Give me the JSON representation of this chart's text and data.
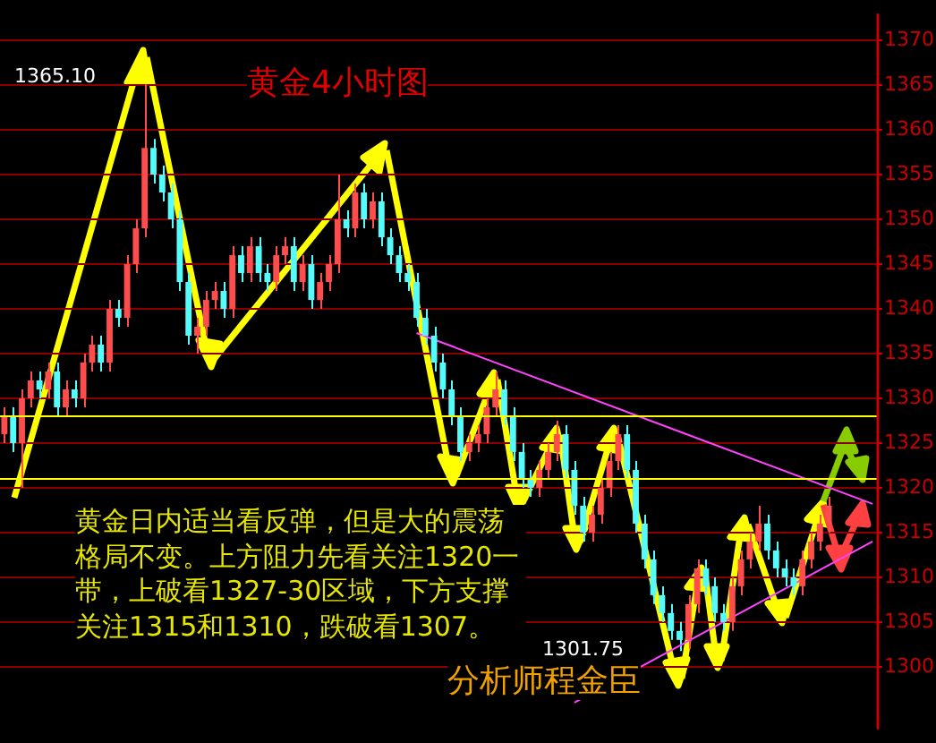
{
  "chart_data": {
    "type": "candlestick",
    "title": "黄金4小时图",
    "categories": [
      null,
      null,
      null,
      null,
      null,
      null,
      null,
      null,
      null,
      null,
      null,
      null,
      null,
      null,
      null,
      null,
      null,
      null,
      null,
      null,
      null,
      null,
      null,
      null,
      null,
      null,
      null,
      null,
      null,
      null,
      null,
      null,
      null,
      null,
      null,
      null,
      null,
      null,
      null,
      null,
      null,
      null,
      null,
      null,
      null,
      null,
      null,
      null,
      null,
      null,
      null,
      null,
      null,
      null,
      null,
      null,
      null,
      null,
      null,
      null,
      null,
      null,
      null,
      null,
      null,
      null,
      null,
      null,
      null,
      null,
      null,
      null,
      null,
      null,
      null,
      null,
      null,
      null,
      null,
      null,
      null,
      null,
      null,
      null,
      null,
      null,
      null,
      null,
      null,
      null,
      null,
      null,
      null,
      null,
      null,
      null,
      null,
      null,
      null,
      null
    ],
    "ohlc": [
      [
        1326,
        1329,
        1325,
        1328
      ],
      [
        1328,
        1329,
        1324,
        1325
      ],
      [
        1325,
        1331,
        1320,
        1330
      ],
      [
        1330,
        1333,
        1329,
        1332
      ],
      [
        1332,
        1333,
        1330,
        1331
      ],
      [
        1331,
        1334,
        1330,
        1333
      ],
      [
        1333,
        1334,
        1328,
        1329
      ],
      [
        1329,
        1332,
        1328,
        1331
      ],
      [
        1331,
        1332,
        1329,
        1330
      ],
      [
        1330,
        1335,
        1329,
        1334
      ],
      [
        1334,
        1337,
        1333,
        1336
      ],
      [
        1336,
        1337,
        1333,
        1334
      ],
      [
        1334,
        1341,
        1333,
        1340
      ],
      [
        1340,
        1341,
        1338,
        1339
      ],
      [
        1339,
        1346,
        1338,
        1345
      ],
      [
        1345,
        1350,
        1344,
        1349
      ],
      [
        1349,
        1365.1,
        1348,
        1358
      ],
      [
        1358,
        1359,
        1354,
        1355
      ],
      [
        1355,
        1356,
        1352,
        1353
      ],
      [
        1353,
        1354,
        1349,
        1350
      ],
      [
        1350,
        1351,
        1342,
        1343
      ],
      [
        1343,
        1344,
        1336,
        1337
      ],
      [
        1337,
        1339,
        1335,
        1338
      ],
      [
        1338,
        1342,
        1337,
        1341
      ],
      [
        1341,
        1343,
        1340,
        1342
      ],
      [
        1342,
        1343,
        1339,
        1340
      ],
      [
        1340,
        1347,
        1339,
        1346
      ],
      [
        1346,
        1347,
        1343,
        1344
      ],
      [
        1344,
        1348,
        1343,
        1347
      ],
      [
        1347,
        1348,
        1343,
        1344
      ],
      [
        1344,
        1345,
        1342,
        1343
      ],
      [
        1343,
        1347,
        1342,
        1346
      ],
      [
        1346,
        1348,
        1345,
        1347
      ],
      [
        1347,
        1348,
        1342,
        1343
      ],
      [
        1343,
        1346,
        1342,
        1345
      ],
      [
        1345,
        1346,
        1340,
        1341
      ],
      [
        1341,
        1344,
        1340,
        1343
      ],
      [
        1343,
        1346,
        1342,
        1345
      ],
      [
        1345,
        1355,
        1344,
        1350
      ],
      [
        1350,
        1351,
        1348,
        1349
      ],
      [
        1349,
        1354,
        1348,
        1353
      ],
      [
        1353,
        1354,
        1349,
        1350
      ],
      [
        1350,
        1353,
        1349,
        1352
      ],
      [
        1352,
        1353,
        1347,
        1348
      ],
      [
        1348,
        1349,
        1345,
        1346
      ],
      [
        1346,
        1347,
        1343,
        1344
      ],
      [
        1344,
        1345,
        1342,
        1343
      ],
      [
        1343,
        1344,
        1338,
        1339
      ],
      [
        1339,
        1340,
        1336,
        1337
      ],
      [
        1337,
        1338,
        1333,
        1334
      ],
      [
        1334,
        1335,
        1330,
        1331
      ],
      [
        1331,
        1332,
        1327,
        1328
      ],
      [
        1328,
        1329,
        1323,
        1324
      ],
      [
        1324,
        1326,
        1323,
        1325
      ],
      [
        1325,
        1327,
        1324,
        1326
      ],
      [
        1326,
        1330,
        1325,
        1329
      ],
      [
        1329,
        1333,
        1328,
        1331
      ],
      [
        1331,
        1332,
        1327,
        1328
      ],
      [
        1328,
        1329,
        1323,
        1324
      ],
      [
        1324,
        1325,
        1320,
        1321
      ],
      [
        1321,
        1322,
        1319,
        1320
      ],
      [
        1320,
        1323,
        1319,
        1322
      ],
      [
        1322,
        1325,
        1321,
        1324
      ],
      [
        1324,
        1327.5,
        1323,
        1326
      ],
      [
        1326,
        1327,
        1321,
        1322
      ],
      [
        1322,
        1323,
        1317,
        1318
      ],
      [
        1318,
        1319,
        1314,
        1315
      ],
      [
        1315,
        1318,
        1314,
        1317
      ],
      [
        1317,
        1321,
        1316,
        1320
      ],
      [
        1320,
        1324,
        1319,
        1323
      ],
      [
        1323,
        1327,
        1322,
        1326
      ],
      [
        1326,
        1327,
        1321,
        1322
      ],
      [
        1322,
        1323,
        1315,
        1316
      ],
      [
        1316,
        1317,
        1311,
        1312
      ],
      [
        1312,
        1313,
        1307,
        1308
      ],
      [
        1308,
        1309,
        1305,
        1306
      ],
      [
        1306,
        1307,
        1303,
        1304
      ],
      [
        1304,
        1305,
        1301.75,
        1303
      ],
      [
        1303,
        1308,
        1302,
        1307
      ],
      [
        1307,
        1312,
        1306,
        1311
      ],
      [
        1311,
        1312,
        1308,
        1309
      ],
      [
        1309,
        1310,
        1305,
        1306
      ],
      [
        1306,
        1307,
        1304,
        1305
      ],
      [
        1305,
        1310,
        1304,
        1309
      ],
      [
        1309,
        1313,
        1308,
        1312
      ],
      [
        1312,
        1315,
        1311,
        1314
      ],
      [
        1314,
        1318,
        1313,
        1316
      ],
      [
        1316,
        1317,
        1312,
        1313
      ],
      [
        1313,
        1314,
        1310,
        1311
      ],
      [
        1311,
        1312,
        1309,
        1310
      ],
      [
        1310,
        1311,
        1308,
        1309
      ],
      [
        1309,
        1313,
        1308,
        1312
      ],
      [
        1312,
        1315,
        1311,
        1314
      ],
      [
        1314,
        1317,
        1313,
        1316
      ],
      [
        1316,
        1319,
        1315,
        1318
      ],
      null,
      null,
      null,
      null,
      null
    ],
    "colors": [
      "#ff4d4d",
      "#54fcfc",
      "#ff4d4d",
      "#ff4d4d",
      "#54fcfc",
      "#ff4d4d",
      "#54fcfc",
      "#ff4d4d",
      "#54fcfc",
      "#ff4d4d",
      "#ff4d4d",
      "#54fcfc",
      "#ff4d4d",
      "#54fcfc",
      "#ff4d4d",
      "#ff4d4d",
      "#ff4d4d",
      "#54fcfc",
      "#54fcfc",
      "#54fcfc",
      "#54fcfc",
      "#54fcfc",
      "#ff4d4d",
      "#ff4d4d",
      "#ff4d4d",
      "#54fcfc",
      "#ff4d4d",
      "#54fcfc",
      "#ff4d4d",
      "#54fcfc",
      "#54fcfc",
      "#ff4d4d",
      "#ff4d4d",
      "#54fcfc",
      "#ff4d4d",
      "#54fcfc",
      "#ff4d4d",
      "#ff4d4d",
      "#ff4d4d",
      "#54fcfc",
      "#ff4d4d",
      "#54fcfc",
      "#ff4d4d",
      "#54fcfc",
      "#54fcfc",
      "#54fcfc",
      "#54fcfc",
      "#54fcfc",
      "#54fcfc",
      "#54fcfc",
      "#54fcfc",
      "#54fcfc",
      "#54fcfc",
      "#ff4d4d",
      "#ff4d4d",
      "#ff4d4d",
      "#ff4d4d",
      "#54fcfc",
      "#54fcfc",
      "#54fcfc",
      "#54fcfc",
      "#ff4d4d",
      "#ff4d4d",
      "#ff4d4d",
      "#54fcfc",
      "#54fcfc",
      "#54fcfc",
      "#ff4d4d",
      "#ff4d4d",
      "#ff4d4d",
      "#ff4d4d",
      "#54fcfc",
      "#54fcfc",
      "#54fcfc",
      "#54fcfc",
      "#54fcfc",
      "#54fcfc",
      "#54fcfc",
      "#ff4d4d",
      "#ff4d4d",
      "#54fcfc",
      "#54fcfc",
      "#54fcfc",
      "#ff4d4d",
      "#ff4d4d",
      "#ff4d4d",
      "#ff4d4d",
      "#54fcfc",
      "#54fcfc",
      "#54fcfc",
      "#54fcfc",
      "#ff4d4d",
      "#ff4d4d",
      "#ff4d4d",
      "#ff4d4d",
      null,
      null,
      null,
      null,
      null
    ],
    "series": [
      {
        "type": "line",
        "color": "#ff44ff",
        "values": [
          null,
          null,
          null,
          null,
          null,
          null,
          null,
          null,
          null,
          null,
          null,
          null,
          null,
          null,
          null,
          null,
          null,
          null,
          null,
          null,
          null,
          null,
          null,
          null,
          null,
          null,
          null,
          null,
          null,
          null,
          null,
          null,
          null,
          null,
          null,
          null,
          null,
          null,
          null,
          null,
          null,
          null,
          null,
          null,
          null,
          null,
          null,
          1337.3,
          null,
          null,
          null,
          null,
          null,
          null,
          null,
          null,
          null,
          null,
          null,
          null,
          null,
          null,
          null,
          null,
          null,
          null,
          null,
          null,
          null,
          null,
          null,
          null,
          null,
          null,
          null,
          null,
          null,
          null,
          null,
          null,
          null,
          null,
          null,
          null,
          null,
          null,
          null,
          null,
          null,
          null,
          null,
          null,
          null,
          null,
          null,
          null,
          null,
          null,
          null,
          1318.2
        ]
      },
      {
        "type": "line",
        "color": "#ff44ff",
        "values": [
          null,
          null,
          null,
          null,
          null,
          null,
          null,
          null,
          null,
          null,
          null,
          null,
          null,
          null,
          null,
          null,
          null,
          null,
          null,
          null,
          null,
          null,
          null,
          null,
          null,
          null,
          null,
          null,
          null,
          null,
          null,
          null,
          null,
          null,
          null,
          null,
          null,
          null,
          null,
          null,
          null,
          null,
          null,
          null,
          null,
          null,
          null,
          null,
          null,
          null,
          null,
          null,
          null,
          null,
          null,
          null,
          null,
          null,
          null,
          null,
          null,
          null,
          null,
          null,
          null,
          1296,
          null,
          null,
          null,
          null,
          null,
          null,
          null,
          null,
          null,
          null,
          null,
          null,
          null,
          null,
          null,
          null,
          null,
          null,
          null,
          null,
          null,
          null,
          null,
          null,
          null,
          null,
          null,
          null,
          null,
          null,
          null,
          null,
          null,
          1314
        ]
      }
    ],
    "ylim": [
      1293,
      1373
    ],
    "yticks": [
      1300,
      1305,
      1310,
      1315,
      1320,
      1325,
      1330,
      1335,
      1340,
      1345,
      1350,
      1355,
      1360,
      1365,
      1370
    ],
    "tick_labels": "y",
    "grid": "y",
    "ref_lines": [
      {
        "axis": "y",
        "value": 1321,
        "color": "#ffff00"
      },
      {
        "axis": "y",
        "value": 1328,
        "color": "#ffff00"
      }
    ],
    "annotations": [
      "黄金日内适当看反弹，但是大的震荡格局不变。上方阻力先看关注1320一带，上破看1327-30区域，下方支撑关注1315和1310，跌破看1307。",
      "分析师程金臣",
      "1365.10",
      "1301.75"
    ]
  }
}
